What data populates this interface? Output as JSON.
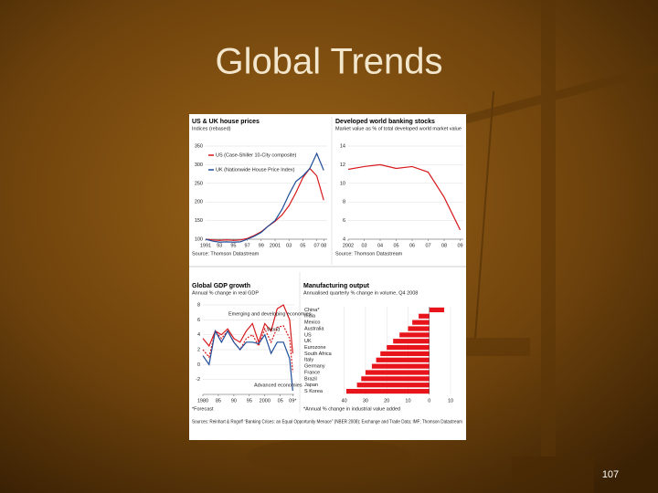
{
  "title": "Global Trends",
  "page_number": "107",
  "sources": "Sources: Reinhart & Rogoff “Banking Crises: an Equal Opportunity Menace” (NBER 2008); Exchange and Trade Data; IMF; Thomson Datastream",
  "chart_data": [
    {
      "type": "line",
      "title": "US & UK house prices",
      "subtitle": "Indices (rebased)",
      "x": [
        1991,
        1992,
        1993,
        1994,
        1995,
        1996,
        1997,
        1998,
        1999,
        2000,
        2001,
        2002,
        2003,
        2004,
        2005,
        2006,
        2007,
        2008
      ],
      "series": [
        {
          "name": "US (Case-Shiller 10-City composite)",
          "color": "#d7191c",
          "values": [
            100,
            98,
            97,
            98,
            97,
            98,
            102,
            110,
            120,
            135,
            148,
            165,
            190,
            225,
            265,
            290,
            270,
            205
          ]
        },
        {
          "name": "UK (Nationwide House Price Index)",
          "color": "#1f4e99",
          "values": [
            100,
            95,
            92,
            93,
            92,
            93,
            100,
            108,
            118,
            135,
            150,
            180,
            220,
            255,
            270,
            290,
            330,
            285
          ]
        }
      ],
      "xlim": [
        1991,
        2008.5
      ],
      "xticks": [
        1991,
        {
          "value": 1993,
          "label": "93"
        },
        {
          "value": 1995,
          "label": "95"
        },
        {
          "value": 1997,
          "label": "97"
        },
        {
          "value": 1999,
          "label": "99"
        },
        2001,
        {
          "value": 2003,
          "label": "03"
        },
        {
          "value": 2005,
          "label": "05"
        },
        {
          "value": 2007,
          "label": "07"
        },
        {
          "value": 2008,
          "label": "08"
        }
      ],
      "ylim": [
        100,
        350
      ],
      "yticks": [
        100,
        150,
        200,
        250,
        300,
        350
      ],
      "grid": true,
      "source": "Source: Thomson Datastream"
    },
    {
      "type": "line",
      "title": "Developed world banking stocks",
      "subtitle": "Market value as % of total developed world market value",
      "x": [
        2002,
        2003,
        2004,
        2005,
        2006,
        2007,
        2008,
        2009
      ],
      "series": [
        {
          "name": null,
          "color": "#d7191c",
          "values": [
            11.5,
            11.8,
            12,
            11.6,
            11.8,
            11.2,
            8.5,
            5
          ]
        }
      ],
      "xlim": [
        2002,
        2009.2
      ],
      "xticks": [
        2002,
        {
          "value": 2003,
          "label": "03"
        },
        {
          "value": 2004,
          "label": "04"
        },
        {
          "value": 2005,
          "label": "05"
        },
        {
          "value": 2006,
          "label": "06"
        },
        {
          "value": 2007,
          "label": "07"
        },
        {
          "value": 2008,
          "label": "08"
        },
        {
          "value": 2009,
          "label": "09"
        }
      ],
      "ylim": [
        4,
        14
      ],
      "yticks": [
        4,
        6,
        8,
        10,
        12,
        14
      ],
      "grid": true,
      "source": "Source: Thomson Datastream"
    },
    {
      "type": "line",
      "title": "Global GDP growth",
      "subtitle": "Annual % change in real GDP",
      "x": [
        1980,
        1982,
        1984,
        1986,
        1988,
        1990,
        1992,
        1994,
        1996,
        1998,
        2000,
        2002,
        2004,
        2006,
        2008,
        2009
      ],
      "series": [
        {
          "name": "Emerging and developing economies",
          "color": "#d7191c",
          "dash": false,
          "values": [
            3.5,
            2.5,
            4.5,
            4,
            4.8,
            3.5,
            3,
            4.5,
            5.5,
            3,
            5.5,
            4.5,
            7.5,
            8,
            6,
            1.5
          ]
        },
        {
          "name": "World",
          "color": "#d7191c",
          "dash": true,
          "values": [
            2,
            1,
            4.5,
            3.5,
            4.5,
            3,
            2,
            3.5,
            4,
            2.5,
            4.8,
            3,
            5,
            5.2,
            3.5,
            -1
          ]
        },
        {
          "name": "Advanced economies",
          "color": "#1f4e99",
          "dash": false,
          "values": [
            1.2,
            0,
            4.5,
            3,
            4.5,
            3,
            2,
            3,
            3,
            2.8,
            4,
            1.5,
            3,
            3,
            0.8,
            -3.5
          ]
        }
      ],
      "xlim": [
        1980,
        2009.5
      ],
      "xticks": [
        1980,
        {
          "value": 1985,
          "label": "85"
        },
        {
          "value": 1990,
          "label": "90"
        },
        {
          "value": 1995,
          "label": "95"
        },
        2000,
        {
          "value": 2005,
          "label": "05"
        },
        {
          "value": 2009,
          "label": "09*"
        }
      ],
      "ylim": [
        -4,
        8
      ],
      "yticks": [
        -2,
        0,
        2,
        4,
        6,
        8
      ],
      "grid": true,
      "source": "*Forecast"
    },
    {
      "type": "hbar",
      "title": "Manufacturing output",
      "subtitle": "Annualised quarterly % change in volume, Q4 2008",
      "categories": [
        "China*",
        "India",
        "Mexico",
        "Australia",
        "US",
        "UK",
        "Eurozone",
        "South Africa",
        "Italy",
        "Germany",
        "France",
        "Brazil",
        "Japan",
        "S Korea"
      ],
      "values": [
        7,
        -5,
        -8,
        -10,
        -14,
        -17,
        -20,
        -23,
        -25,
        -27,
        -30,
        -32,
        -34,
        -39
      ],
      "color": "#e8141b",
      "xlim": [
        -42,
        13
      ],
      "xticks": [
        {
          "value": -40,
          "label": "40"
        },
        {
          "value": -30,
          "label": "30"
        },
        {
          "value": -20,
          "label": "20"
        },
        {
          "value": -10,
          "label": "10"
        },
        0,
        10
      ],
      "grid": true,
      "source": "*Annual % change in industrial value added"
    }
  ]
}
